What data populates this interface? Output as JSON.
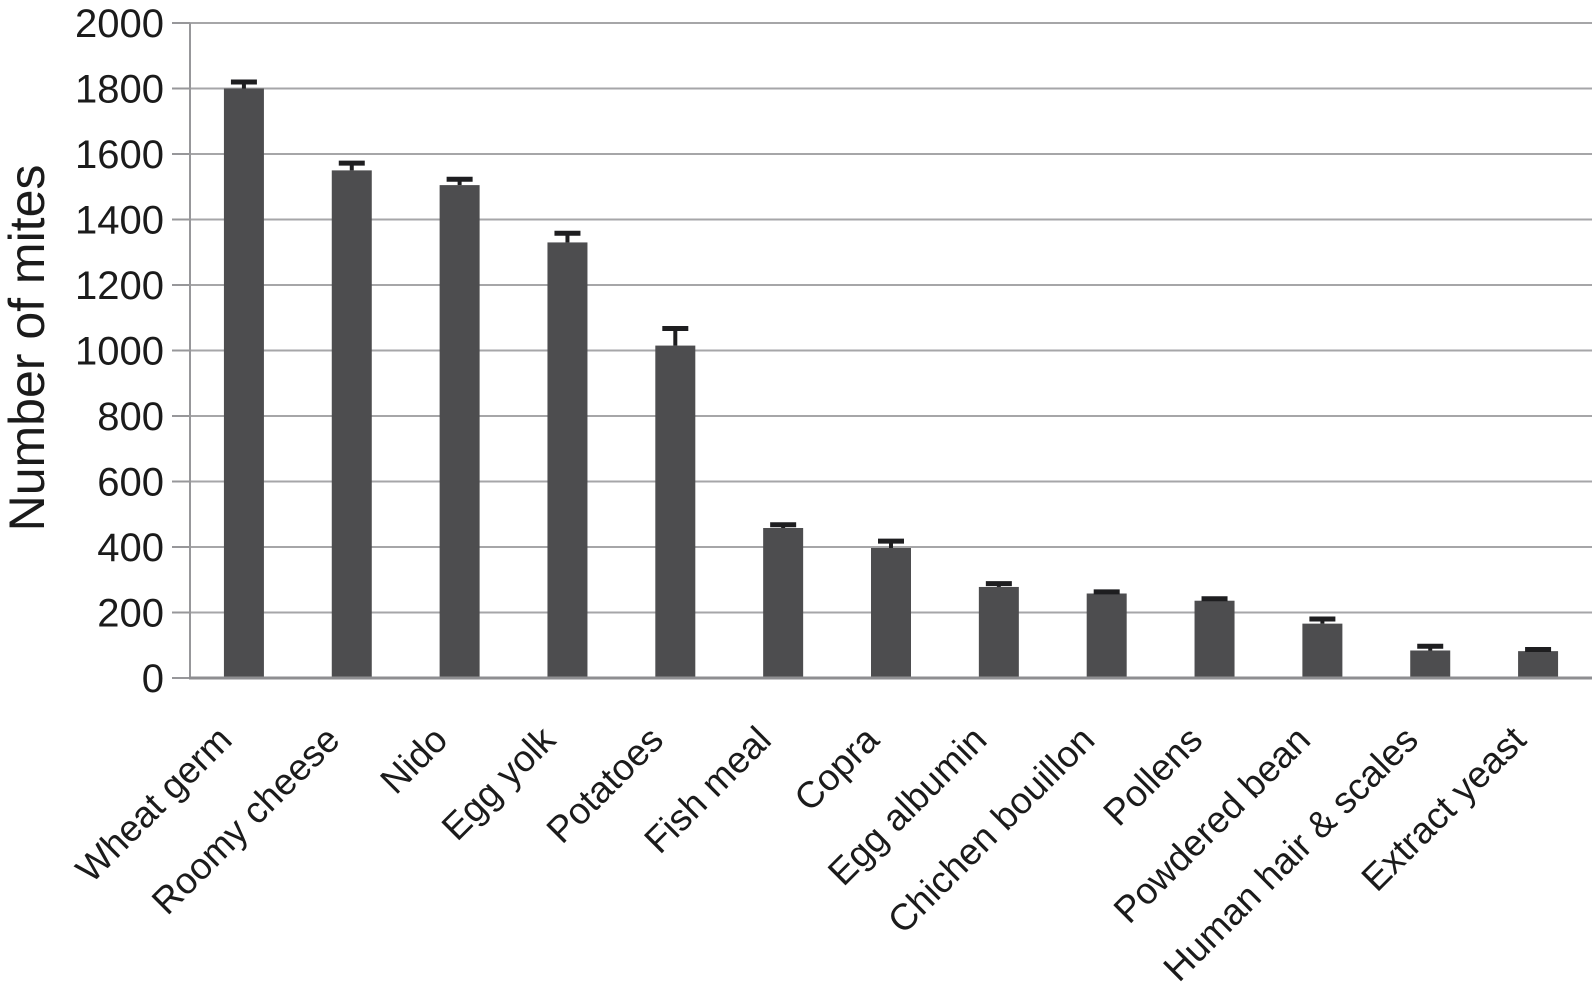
{
  "chart_data": {
    "type": "bar",
    "title": "",
    "ylabel": "Number of mites",
    "xlabel": "",
    "ylim": [
      0,
      2000
    ],
    "ytick_step": 200,
    "yticks": [
      0,
      200,
      400,
      600,
      800,
      1000,
      1200,
      1400,
      1600,
      1800,
      2000
    ],
    "grid": "horizontal gridlines every 200, full plot width",
    "legend": "none",
    "x_labels_rotation_deg": -45,
    "error_bars": "upper whisker with cap",
    "bar_color": "#4d4d4f",
    "error_bar_color": "#1e1e20",
    "grid_color": "#a6a6a8",
    "axis_color": "#97979a",
    "x_axis_color": "#8e8e91",
    "text_color": "#1b1b1b",
    "categories": [
      "Wheat germ",
      "Roomy cheese",
      "Nido",
      "Egg yolk",
      "Potatoes",
      "Fish meal",
      "Copra",
      "Egg albumin",
      "Chichen bouillon",
      "Pollens",
      "Powdered bean",
      "Human hair & scales",
      "Extract yeast"
    ],
    "series": [
      {
        "name": "Number of mites",
        "values": [
          1800,
          1550,
          1505,
          1330,
          1015,
          458,
          397,
          278,
          258,
          236,
          166,
          84,
          82
        ],
        "errors_plus": [
          20,
          22,
          18,
          28,
          52,
          10,
          21,
          10,
          5,
          6,
          14,
          13,
          5
        ]
      }
    ]
  }
}
